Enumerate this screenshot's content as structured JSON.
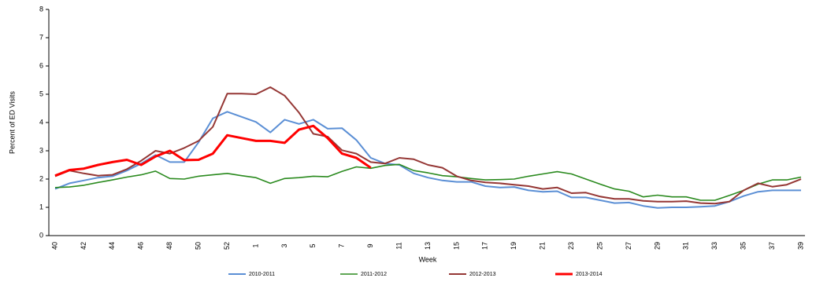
{
  "chart_data": {
    "type": "line",
    "y_label": "Percent of ED Visits",
    "x_label": "Week",
    "categories": [
      40,
      null,
      42,
      null,
      44,
      null,
      46,
      null,
      48,
      null,
      50,
      null,
      52,
      null,
      1,
      null,
      3,
      null,
      5,
      null,
      7,
      null,
      9,
      null,
      11,
      null,
      13,
      null,
      15,
      null,
      17,
      null,
      19,
      null,
      21,
      null,
      23,
      null,
      25,
      null,
      27,
      null,
      29,
      null,
      31,
      null,
      33,
      null,
      35,
      null,
      37,
      null,
      39
    ],
    "ylim": [
      0,
      8
    ],
    "yticks": [
      0,
      1,
      2,
      3,
      4,
      5,
      6,
      7,
      8
    ],
    "legend": "bottom",
    "series": [
      {
        "name": "2010-2011",
        "color": "#5b8fd5",
        "width": 2,
        "values": [
          1.65,
          1.85,
          1.95,
          2.05,
          2.1,
          2.3,
          2.55,
          2.85,
          2.6,
          2.6,
          3.3,
          4.15,
          4.38,
          4.2,
          4.02,
          3.65,
          4.1,
          3.95,
          4.1,
          3.78,
          3.8,
          3.38,
          2.75,
          2.55,
          2.5,
          2.2,
          2.05,
          1.95,
          1.9,
          1.9,
          1.75,
          1.7,
          1.72,
          1.6,
          1.55,
          1.57,
          1.35,
          1.35,
          1.25,
          1.15,
          1.17,
          1.05,
          0.98,
          1.0,
          1.0,
          1.02,
          1.05,
          1.2,
          1.4,
          1.55,
          1.6,
          1.6,
          1.6
        ]
      },
      {
        "name": "2011-2012",
        "color": "#2a8a1e",
        "width": 1.6,
        "values": [
          1.7,
          1.72,
          1.78,
          1.88,
          1.97,
          2.07,
          2.15,
          2.28,
          2.02,
          2.0,
          2.1,
          2.15,
          2.2,
          2.12,
          2.05,
          1.85,
          2.02,
          2.05,
          2.1,
          2.08,
          2.27,
          2.43,
          2.38,
          2.48,
          2.52,
          2.3,
          2.22,
          2.12,
          2.08,
          2.02,
          1.97,
          1.98,
          2.0,
          2.1,
          2.18,
          2.26,
          2.18,
          2.0,
          1.82,
          1.65,
          1.57,
          1.37,
          1.43,
          1.37,
          1.37,
          1.25,
          1.25,
          1.42,
          1.6,
          1.82,
          1.97,
          1.97,
          2.07
        ]
      },
      {
        "name": "2012-2013",
        "color": "#953735",
        "width": 2,
        "values": [
          2.1,
          2.3,
          2.2,
          2.12,
          2.15,
          2.35,
          2.65,
          3.0,
          2.9,
          3.1,
          3.35,
          3.85,
          5.02,
          5.02,
          5.0,
          5.25,
          4.95,
          4.35,
          3.6,
          3.5,
          3.02,
          2.9,
          2.6,
          2.55,
          2.75,
          2.7,
          2.5,
          2.4,
          2.1,
          1.95,
          1.88,
          1.85,
          1.8,
          1.75,
          1.65,
          1.7,
          1.5,
          1.52,
          1.38,
          1.3,
          1.3,
          1.23,
          1.2,
          1.2,
          1.22,
          1.15,
          1.13,
          1.2,
          1.6,
          1.85,
          1.73,
          1.8,
          2.0
        ]
      },
      {
        "name": "2013-2014",
        "color": "#ff0000",
        "width": 3,
        "values": [
          2.12,
          2.32,
          2.37,
          2.5,
          2.6,
          2.68,
          2.5,
          2.8,
          3.0,
          2.67,
          2.68,
          2.9,
          3.55,
          3.45,
          3.35,
          3.35,
          3.28,
          3.75,
          3.88,
          3.45,
          2.9,
          2.75,
          2.4,
          null,
          null,
          null,
          null,
          null,
          null,
          null,
          null,
          null,
          null,
          null,
          null,
          null,
          null,
          null,
          null,
          null,
          null,
          null,
          null,
          null,
          null,
          null,
          null,
          null,
          null,
          null,
          null,
          null,
          null
        ]
      }
    ]
  }
}
